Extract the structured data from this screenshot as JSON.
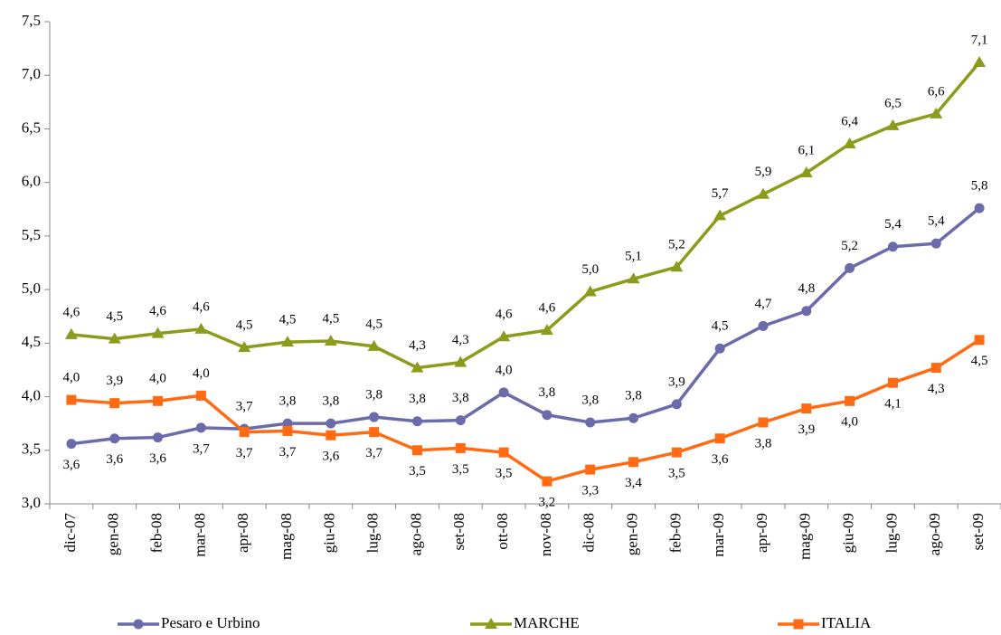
{
  "chart_data": {
    "type": "line",
    "categories": [
      "dic-07",
      "gen-08",
      "feb-08",
      "mar-08",
      "apr-08",
      "mag-08",
      "giu-08",
      "lug-08",
      "ago-08",
      "set-08",
      "ott-08",
      "nov-08",
      "dic-08",
      "gen-09",
      "feb-09",
      "mar-09",
      "apr-09",
      "mag-09",
      "giu-09",
      "lug-09",
      "ago-09",
      "set-09"
    ],
    "series": [
      {
        "name": "Pesaro e Urbino",
        "color": "#6b6bab",
        "marker": "circle",
        "values": [
          3.56,
          3.61,
          3.62,
          3.71,
          3.7,
          3.75,
          3.75,
          3.81,
          3.77,
          3.78,
          4.04,
          3.83,
          3.76,
          3.8,
          3.93,
          4.45,
          4.66,
          4.8,
          5.2,
          5.4,
          5.43,
          5.76
        ],
        "value_labels": [
          "3,6",
          "3,6",
          "3,6",
          "3,7",
          "3,7",
          "3,8",
          "3,8",
          "3,8",
          "3,8",
          "3,8",
          "4,0",
          "3,8",
          "3,8",
          "3,8",
          "3,9",
          "4,5",
          "4,7",
          "4,8",
          "5,2",
          "5,4",
          "5,4",
          "5,8"
        ]
      },
      {
        "name": "MARCHE",
        "color": "#8b9b1b",
        "marker": "triangle",
        "values": [
          4.58,
          4.54,
          4.59,
          4.63,
          4.46,
          4.51,
          4.52,
          4.47,
          4.27,
          4.32,
          4.56,
          4.62,
          4.98,
          5.1,
          5.21,
          5.69,
          5.89,
          6.09,
          6.36,
          6.53,
          6.64,
          7.12
        ],
        "value_labels": [
          "4,6",
          "4,5",
          "4,6",
          "4,6",
          "4,5",
          "4,5",
          "4,5",
          "4,5",
          "4,3",
          "4,3",
          "4,6",
          "4,6",
          "5,0",
          "5,1",
          "5,2",
          "5,7",
          "5,9",
          "6,1",
          "6,4",
          "6,5",
          "6,6",
          "7,1"
        ]
      },
      {
        "name": "ITALIA",
        "color": "#ff6a13",
        "marker": "square",
        "values": [
          3.97,
          3.94,
          3.96,
          4.01,
          3.67,
          3.68,
          3.64,
          3.67,
          3.5,
          3.52,
          3.48,
          3.21,
          3.32,
          3.39,
          3.48,
          3.61,
          3.76,
          3.89,
          3.96,
          4.13,
          4.27,
          4.53
        ],
        "value_labels": [
          "4,0",
          "3,9",
          "4,0",
          "4,0",
          "3,7",
          "3,7",
          "3,6",
          "3,7",
          "3,5",
          "3,5",
          "3,5",
          "3,2",
          "3,3",
          "3,4",
          "3,5",
          "3,6",
          "3,8",
          "3,9",
          "4,0",
          "4,1",
          "4,3",
          "4,5"
        ]
      }
    ],
    "ylim": [
      3.0,
      7.5
    ],
    "yticks": [
      {
        "value": 3.0,
        "label": "3,0"
      },
      {
        "value": 3.5,
        "label": "3,5"
      },
      {
        "value": 4.0,
        "label": "4,0"
      },
      {
        "value": 4.5,
        "label": "4,5"
      },
      {
        "value": 5.0,
        "label": "5,0"
      },
      {
        "value": 5.5,
        "label": "5,5"
      },
      {
        "value": 6.0,
        "label": "6,0"
      },
      {
        "value": 6.5,
        "label": "6,5"
      },
      {
        "value": 7.0,
        "label": "7,0"
      },
      {
        "value": 7.5,
        "label": "7,5"
      }
    ],
    "grid": false,
    "legend": "bottom"
  }
}
